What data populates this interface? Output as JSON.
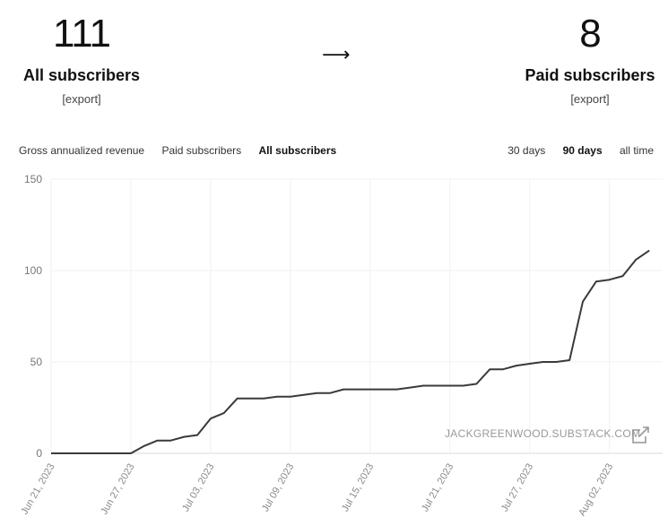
{
  "stats": {
    "left": {
      "value": "111",
      "label": "All subscribers",
      "export": "[export]"
    },
    "arrow": "⟶",
    "right": {
      "value": "8",
      "label": "Paid subscribers",
      "export": "[export]"
    }
  },
  "metric_tabs": [
    "Gross annualized revenue",
    "Paid subscribers",
    "All subscribers"
  ],
  "active_metric": "All subscribers",
  "range_tabs": [
    "30 days",
    "90 days",
    "all time"
  ],
  "active_range": "90 days",
  "watermark": "JACKGREENWOOD.SUBSTACK.COM",
  "chart_data": {
    "type": "line",
    "ylim": [
      0,
      150
    ],
    "yticks": [
      0,
      50,
      100,
      150
    ],
    "grid": true,
    "xlim": [
      "2023-06-21",
      "2023-08-06"
    ],
    "xticks": [
      "Jun 21, 2023",
      "Jun 27, 2023",
      "Jul 03, 2023",
      "Jul 09, 2023",
      "Jul 15, 2023",
      "Jul 21, 2023",
      "Jul 27, 2023",
      "Aug 02, 2023"
    ],
    "series": [
      {
        "color": "#3a3a3a",
        "x": [
          "2023-06-21",
          "2023-06-22",
          "2023-06-23",
          "2023-06-24",
          "2023-06-25",
          "2023-06-26",
          "2023-06-27",
          "2023-06-28",
          "2023-06-29",
          "2023-06-30",
          "2023-07-01",
          "2023-07-02",
          "2023-07-03",
          "2023-07-04",
          "2023-07-05",
          "2023-07-06",
          "2023-07-07",
          "2023-07-08",
          "2023-07-09",
          "2023-07-10",
          "2023-07-11",
          "2023-07-12",
          "2023-07-13",
          "2023-07-14",
          "2023-07-15",
          "2023-07-16",
          "2023-07-17",
          "2023-07-18",
          "2023-07-19",
          "2023-07-20",
          "2023-07-21",
          "2023-07-22",
          "2023-07-23",
          "2023-07-24",
          "2023-07-25",
          "2023-07-26",
          "2023-07-27",
          "2023-07-28",
          "2023-07-29",
          "2023-07-30",
          "2023-07-31",
          "2023-08-01",
          "2023-08-02",
          "2023-08-03",
          "2023-08-04",
          "2023-08-05"
        ],
        "values": [
          0,
          0,
          0,
          0,
          0,
          0,
          0,
          4,
          7,
          7,
          9,
          10,
          19,
          22,
          30,
          30,
          30,
          31,
          31,
          32,
          33,
          33,
          35,
          35,
          35,
          35,
          35,
          36,
          37,
          37,
          37,
          37,
          38,
          46,
          46,
          48,
          49,
          50,
          50,
          51,
          83,
          94,
          95,
          97,
          106,
          111
        ]
      }
    ]
  }
}
